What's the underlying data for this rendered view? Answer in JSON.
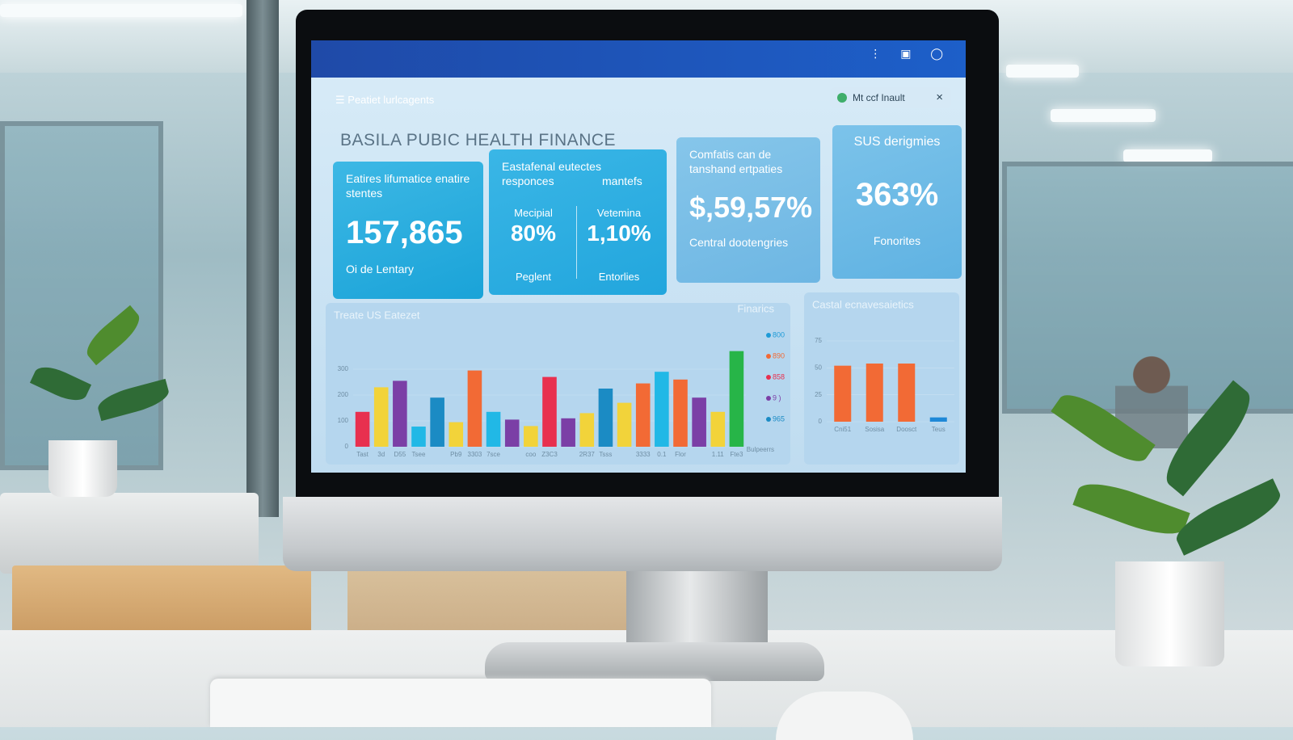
{
  "screen": {
    "menu": "Peatiet lurlcagents",
    "notification": "Mt ccf Inault",
    "title": "BASILA PUBIC HEALTH FINANCE",
    "cards": [
      {
        "label": "Eatires lifumatice enatire stentes",
        "value": "157,865",
        "caption": "Oi de Lentary"
      },
      {
        "label": "Eastafenal eutectes responces",
        "sublabel": "mantefs",
        "metrics": [
          {
            "label": "Mecipial",
            "value": "80%",
            "caption": "Peglent"
          },
          {
            "label": "Vetemina",
            "value": "1,10%",
            "caption": "Entorlies"
          }
        ]
      },
      {
        "label": "Comfatis can de tanshand ertpaties",
        "value": "$,59,57%",
        "caption": "Central dootengries"
      },
      {
        "label": "SUS derigmies",
        "value": "363%",
        "caption": "Fonorites"
      }
    ]
  },
  "chart_data": [
    {
      "type": "bar",
      "title": "Treate US Eatezet",
      "subtitle": "Finarics",
      "xlabel": "Bulpeerrs",
      "categories": [
        "Tast",
        "3d",
        "D55",
        "Tsee",
        null,
        "Pb9",
        "3303",
        "7sce",
        null,
        "coo",
        "Z3C3",
        null,
        "2R37",
        "Tsss",
        null,
        "3333",
        "0.1",
        "Flor",
        null,
        "1.11",
        "Fte3"
      ],
      "values": [
        135,
        230,
        255,
        78,
        190,
        95,
        295,
        135,
        105,
        80,
        270,
        110,
        130,
        225,
        170,
        245,
        290,
        260,
        190,
        135,
        370
      ],
      "colors": [
        "#e8304f",
        "#f2d33a",
        "#7b3fa6",
        "#21b8e6",
        "#1b8bc4",
        "#f2d33a",
        "#f26a35",
        "#21b8e6",
        "#7b3fa6",
        "#f2d33a",
        "#e8304f",
        "#7b3fa6",
        "#f2d33a",
        "#1b8bc4",
        "#f2d33a",
        "#f26a35",
        "#21b8e6",
        "#f26a35",
        "#7b3fa6",
        "#f2d33a",
        "#27b548"
      ],
      "ylim": [
        0,
        400
      ],
      "yticks": [
        0,
        100,
        200,
        300
      ],
      "legend": [
        {
          "label": "800",
          "color": "#1e9bd7"
        },
        {
          "label": "890",
          "color": "#f26a35"
        },
        {
          "label": "858",
          "color": "#e8304f"
        },
        {
          "label": "9 )",
          "color": "#7b3fa6"
        },
        {
          "label": "965",
          "color": "#1b8bc4"
        }
      ]
    },
    {
      "type": "bar",
      "title": "Castal ecnavesaietics",
      "categories": [
        "Cni51",
        "Sosisa",
        "Doosct",
        "Teus"
      ],
      "values": [
        52,
        54,
        54,
        4
      ],
      "colors": [
        "#f26a35",
        "#f26a35",
        "#f26a35",
        "#1e88d7"
      ],
      "ylim": [
        0,
        75
      ],
      "yticks": [
        0,
        25,
        50,
        75
      ]
    }
  ]
}
